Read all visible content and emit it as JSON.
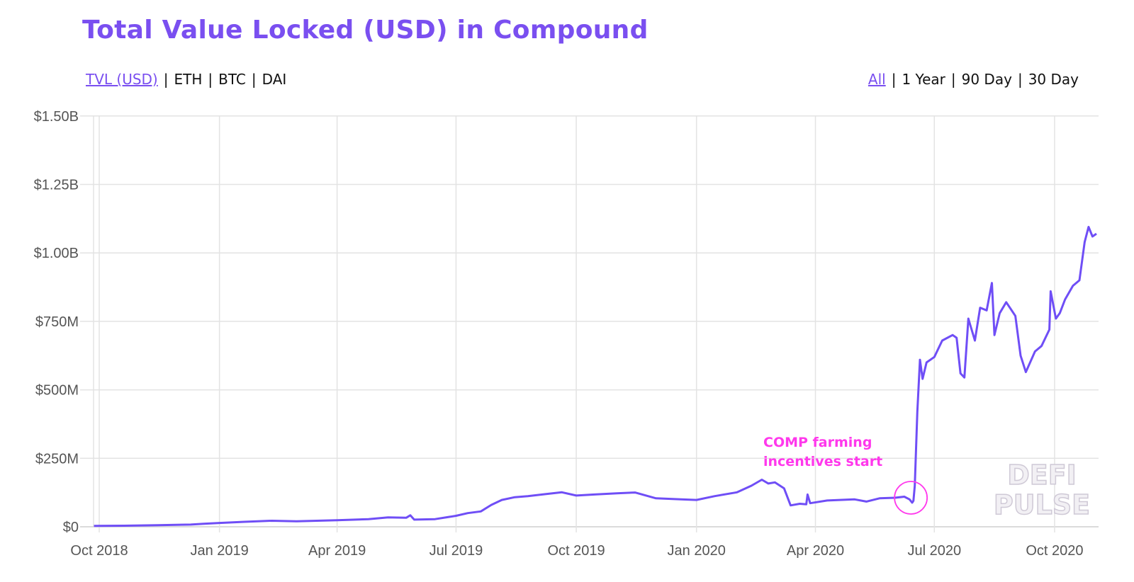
{
  "title": "Total Value Locked (USD) in Compound",
  "metric_tabs": [
    {
      "label": "TVL (USD)",
      "active": true
    },
    {
      "label": "ETH",
      "active": false
    },
    {
      "label": "BTC",
      "active": false
    },
    {
      "label": "DAI",
      "active": false
    }
  ],
  "range_tabs": [
    {
      "label": "All",
      "active": true
    },
    {
      "label": "1 Year",
      "active": false
    },
    {
      "label": "90 Day",
      "active": false
    },
    {
      "label": "30 Day",
      "active": false
    }
  ],
  "watermark": [
    "DEFI",
    "PULSE"
  ],
  "colors": {
    "accent": "#7a4ff0",
    "line": "#6f4ef6",
    "annotation": "#ff38ec",
    "grid": "#e3e3e3"
  },
  "chart_data": {
    "type": "line",
    "title": "Total Value Locked (USD) in Compound",
    "xlabel": "",
    "ylabel": "",
    "y_unit": "USD millions",
    "ylim": [
      0,
      1500
    ],
    "y_ticks": [
      {
        "value": 0,
        "label": "$0"
      },
      {
        "value": 250,
        "label": "$250M"
      },
      {
        "value": 500,
        "label": "$500M"
      },
      {
        "value": 750,
        "label": "$750M"
      },
      {
        "value": 1000,
        "label": "$1.00B"
      },
      {
        "value": 1250,
        "label": "$1.25B"
      },
      {
        "value": 1500,
        "label": "$1.50B"
      }
    ],
    "x_ticks": [
      {
        "date": "2018-10-01",
        "label": "Oct 2018"
      },
      {
        "date": "2019-01-01",
        "label": "Jan 2019"
      },
      {
        "date": "2019-04-01",
        "label": "Apr 2019"
      },
      {
        "date": "2019-07-01",
        "label": "Jul 2019"
      },
      {
        "date": "2019-10-01",
        "label": "Oct 2019"
      },
      {
        "date": "2020-01-01",
        "label": "Jan 2020"
      },
      {
        "date": "2020-04-01",
        "label": "Apr 2020"
      },
      {
        "date": "2020-07-01",
        "label": "Jul 2020"
      },
      {
        "date": "2020-10-01",
        "label": "Oct 2020"
      }
    ],
    "grid": true,
    "legend": "none",
    "series": [
      {
        "points": [
          [
            "2018-09-27",
            3
          ],
          [
            "2018-10-20",
            4
          ],
          [
            "2018-11-15",
            6
          ],
          [
            "2018-12-10",
            8
          ],
          [
            "2018-12-20",
            11
          ],
          [
            "2019-01-01",
            14
          ],
          [
            "2019-01-20",
            18
          ],
          [
            "2019-02-10",
            22
          ],
          [
            "2019-03-01",
            20
          ],
          [
            "2019-04-01",
            24
          ],
          [
            "2019-04-25",
            28
          ],
          [
            "2019-05-10",
            34
          ],
          [
            "2019-05-24",
            33
          ],
          [
            "2019-05-27",
            42
          ],
          [
            "2019-05-30",
            26
          ],
          [
            "2019-06-15",
            28
          ],
          [
            "2019-07-01",
            40
          ],
          [
            "2019-07-10",
            50
          ],
          [
            "2019-07-20",
            56
          ],
          [
            "2019-07-28",
            80
          ],
          [
            "2019-08-05",
            98
          ],
          [
            "2019-08-15",
            108
          ],
          [
            "2019-08-25",
            112
          ],
          [
            "2019-09-05",
            118
          ],
          [
            "2019-09-20",
            126
          ],
          [
            "2019-10-01",
            114
          ],
          [
            "2019-10-15",
            118
          ],
          [
            "2019-11-01",
            122
          ],
          [
            "2019-11-15",
            125
          ],
          [
            "2019-12-01",
            104
          ],
          [
            "2019-12-20",
            100
          ],
          [
            "2020-01-01",
            98
          ],
          [
            "2020-01-15",
            112
          ],
          [
            "2020-02-01",
            126
          ],
          [
            "2020-02-12",
            150
          ],
          [
            "2020-02-20",
            172
          ],
          [
            "2020-02-25",
            158
          ],
          [
            "2020-03-01",
            162
          ],
          [
            "2020-03-08",
            140
          ],
          [
            "2020-03-13",
            78
          ],
          [
            "2020-03-20",
            84
          ],
          [
            "2020-03-25",
            82
          ],
          [
            "2020-03-26",
            118
          ],
          [
            "2020-03-28",
            86
          ],
          [
            "2020-04-10",
            96
          ],
          [
            "2020-05-01",
            100
          ],
          [
            "2020-05-10",
            92
          ],
          [
            "2020-05-20",
            104
          ],
          [
            "2020-06-01",
            106
          ],
          [
            "2020-06-08",
            110
          ],
          [
            "2020-06-12",
            100
          ],
          [
            "2020-06-14",
            88
          ],
          [
            "2020-06-15",
            95
          ],
          [
            "2020-06-16",
            150
          ],
          [
            "2020-06-18",
            420
          ],
          [
            "2020-06-20",
            610
          ],
          [
            "2020-06-22",
            540
          ],
          [
            "2020-06-25",
            600
          ],
          [
            "2020-07-01",
            620
          ],
          [
            "2020-07-07",
            680
          ],
          [
            "2020-07-15",
            700
          ],
          [
            "2020-07-18",
            690
          ],
          [
            "2020-07-21",
            560
          ],
          [
            "2020-07-24",
            545
          ],
          [
            "2020-07-27",
            760
          ],
          [
            "2020-08-01",
            680
          ],
          [
            "2020-08-05",
            800
          ],
          [
            "2020-08-10",
            790
          ],
          [
            "2020-08-14",
            890
          ],
          [
            "2020-08-16",
            700
          ],
          [
            "2020-08-20",
            780
          ],
          [
            "2020-08-25",
            820
          ],
          [
            "2020-09-01",
            770
          ],
          [
            "2020-09-05",
            625
          ],
          [
            "2020-09-09",
            565
          ],
          [
            "2020-09-16",
            640
          ],
          [
            "2020-09-21",
            660
          ],
          [
            "2020-09-27",
            720
          ],
          [
            "2020-09-28",
            860
          ],
          [
            "2020-10-02",
            760
          ],
          [
            "2020-10-05",
            780
          ],
          [
            "2020-10-09",
            830
          ],
          [
            "2020-10-15",
            880
          ],
          [
            "2020-10-20",
            900
          ],
          [
            "2020-10-24",
            1040
          ],
          [
            "2020-10-27",
            1095
          ],
          [
            "2020-10-30",
            1060
          ],
          [
            "2020-11-02",
            1070
          ]
        ]
      }
    ],
    "annotations": [
      {
        "text_lines": [
          "COMP farming",
          "incentives start"
        ],
        "marker": "circle",
        "date": "2020-06-13",
        "value": 106
      }
    ]
  }
}
